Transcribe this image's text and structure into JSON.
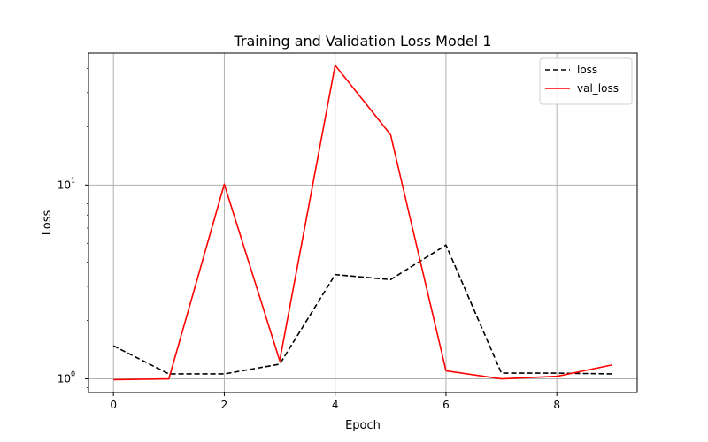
{
  "chart_data": {
    "type": "line",
    "title": "Training and Validation Loss Model 1",
    "xlabel": "Epoch",
    "ylabel": "Loss",
    "x": [
      0,
      1,
      2,
      3,
      4,
      5,
      6,
      7,
      8,
      9
    ],
    "xlim": [
      -0.45,
      9.45
    ],
    "ylim": [
      0.85,
      48
    ],
    "yscale": "log",
    "x_ticks": [
      0,
      2,
      4,
      6,
      8
    ],
    "x_tick_labels": [
      "0",
      "2",
      "4",
      "6",
      "8"
    ],
    "y_ticks": [
      1,
      10
    ],
    "y_tick_labels": [
      {
        "base": "10",
        "exp": "0"
      },
      {
        "base": "10",
        "exp": "1"
      }
    ],
    "grid": true,
    "legend_position": "top-right",
    "series": [
      {
        "name": "loss",
        "color": "#000000",
        "dash": "dashed",
        "values": [
          1.48,
          1.06,
          1.06,
          1.19,
          3.45,
          3.25,
          4.9,
          1.07,
          1.07,
          1.06
        ]
      },
      {
        "name": "val_loss",
        "color": "#ff0000",
        "dash": "solid",
        "values": [
          0.99,
          1.0,
          10.1,
          1.24,
          41.5,
          18.2,
          1.1,
          1.0,
          1.03,
          1.18
        ]
      }
    ]
  }
}
